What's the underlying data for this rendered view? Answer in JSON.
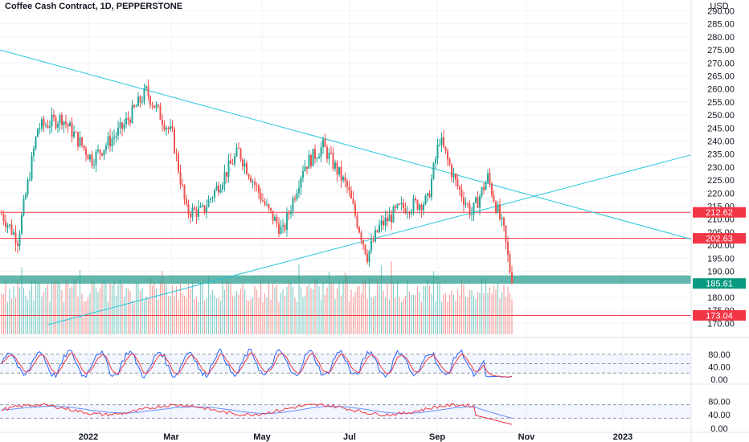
{
  "header": {
    "title": "Coffee Cash Contract, 1D, PEPPERSTONE"
  },
  "colors": {
    "up": "#26a69a",
    "down": "#ef5350",
    "trend": "#26c6da",
    "level": "#f23645",
    "zone": "#2e9e8f",
    "last_price": "#089981",
    "stoch_k": "#2962ff",
    "stoch_d": "#f23645"
  },
  "chart_data": [
    {
      "type": "candlestick",
      "currency": "USD",
      "ylim": [
        168,
        291
      ],
      "y_ticks": [
        290,
        285,
        280,
        275,
        270,
        265,
        260,
        255,
        250,
        245,
        240,
        235,
        230,
        225,
        220,
        215,
        210,
        205,
        200,
        195,
        190,
        180,
        175,
        170
      ],
      "x_labels": [
        "2022",
        "Mar",
        "May",
        "Jul",
        "Sep",
        "Nov",
        "2023"
      ],
      "key_points": [
        {
          "date": "Dec 2021",
          "price": 212
        },
        {
          "date": "mid Dec 2021",
          "price": 202
        },
        {
          "date": "late Dec 2021",
          "price": 245
        },
        {
          "date": "early Jan 2022",
          "price": 249
        },
        {
          "date": "Feb 2022",
          "price": 233
        },
        {
          "date": "early Feb 2022",
          "price": 259
        },
        {
          "date": "Mar 2022",
          "price": 213
        },
        {
          "date": "Apr 2022",
          "price": 236
        },
        {
          "date": "May 2022",
          "price": 205
        },
        {
          "date": "early Jun 2022",
          "price": 238
        },
        {
          "date": "Jul 2022",
          "price": 196
        },
        {
          "date": "Aug 2022",
          "price": 217
        },
        {
          "date": "late Aug 2022",
          "price": 241
        },
        {
          "date": "Sep 2022",
          "price": 212
        },
        {
          "date": "late Sep 2022",
          "price": 226
        },
        {
          "date": "Oct 2022",
          "price": 185.61
        }
      ],
      "levels": [
        {
          "label": "212.62",
          "value": 212.62
        },
        {
          "label": "202.63",
          "value": 202.63
        },
        {
          "label": "173.04",
          "value": 173.04
        }
      ],
      "last_price": {
        "label": "185.61",
        "value": 185.61
      },
      "zone": [
        185.2,
        188.4
      ],
      "trendlines": [
        {
          "from": {
            "date": "Nov 2021",
            "price": 275
          },
          "to": {
            "date": "Dec 2022",
            "price": 202
          }
        },
        {
          "from": {
            "date": "Feb 2022",
            "price": 170
          },
          "to": {
            "date": "Dec 2022",
            "price": 235
          }
        }
      ]
    },
    {
      "type": "oscillator",
      "name": "Stochastic",
      "ylim": [
        0,
        100
      ],
      "y_ticks": [
        80,
        40,
        0
      ],
      "y_tick_labels": [
        "80.00",
        "40.00",
        "0.00"
      ],
      "bands": [
        80,
        50,
        20
      ]
    },
    {
      "type": "oscillator",
      "ylim": [
        0,
        100
      ],
      "y_ticks": [
        80,
        40,
        0
      ],
      "y_tick_labels": [
        "80.00",
        "40.00",
        "0.00"
      ],
      "bands": [
        70,
        30
      ]
    }
  ]
}
